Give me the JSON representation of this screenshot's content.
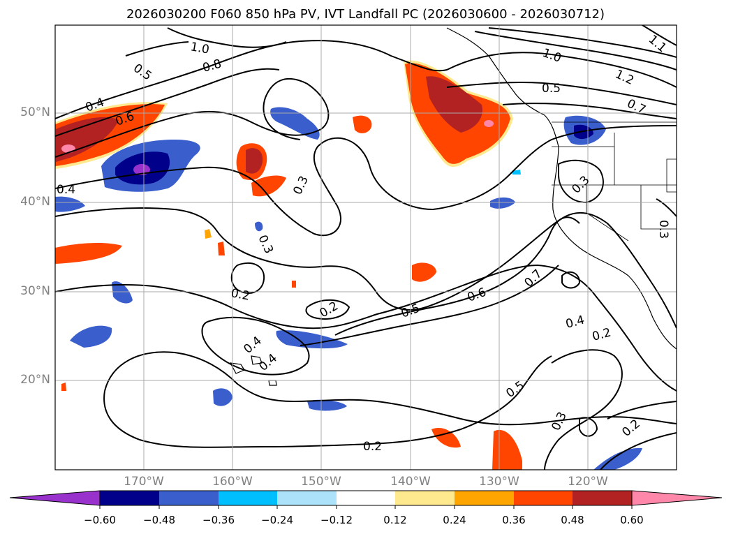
{
  "title": "2026030200 F060 850 hPa PV, IVT Landfall PC (2026030600 - 2026030712)",
  "latitude_labels": [
    "50°N",
    "40°N",
    "30°N",
    "20°N"
  ],
  "longitude_labels": [
    "170°W",
    "160°W",
    "150°W",
    "140°W",
    "130°W",
    "120°W"
  ],
  "colorbar": {
    "ticks": [
      "−0.60",
      "−0.48",
      "−0.36",
      "−0.24",
      "−0.12",
      "0.12",
      "0.24",
      "0.36",
      "0.48",
      "0.60"
    ],
    "colors": [
      "#9932CC",
      "#00008B",
      "#3A5FCD",
      "#00BFFF",
      "#ADE3FA",
      "#FFFFFF",
      "#FFE98F",
      "#FFA500",
      "#FF4500",
      "#B22222",
      "#FF88AA"
    ]
  },
  "contour_labels": [
    "1.0",
    "0.8",
    "0.5",
    "0.4",
    "0.6",
    "0.4",
    "1.0",
    "1.2",
    "0.5",
    "1.1",
    "0.7",
    "0.3",
    "0.3",
    "0.3",
    "0.3",
    "0.2",
    "0.2",
    "0.4",
    "0.4",
    "0.5",
    "0.6",
    "0.7",
    "0.4",
    "0.2",
    "0.5",
    "0.3",
    "0.2",
    "0.2"
  ]
}
